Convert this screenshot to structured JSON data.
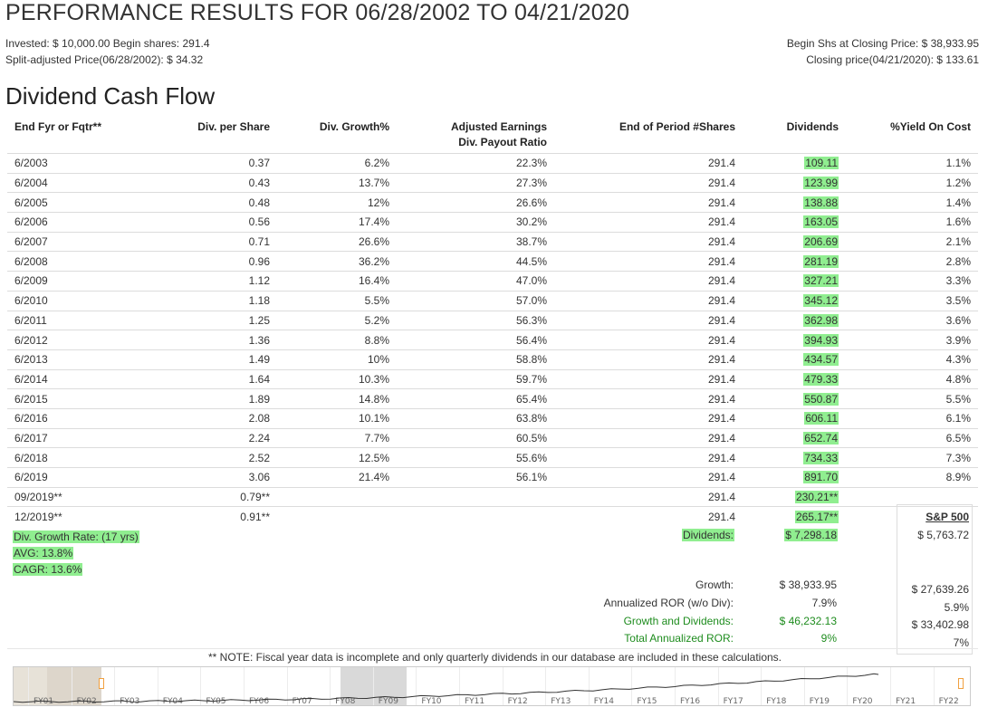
{
  "page": {
    "title": "PERFORMANCE RESULTS FOR 06/28/2002 TO 04/21/2020",
    "invested_line": "Invested: $ 10,000.00 Begin shares: 291.4",
    "split_price_line": "Split-adjusted Price(06/28/2002): $ 34.32",
    "begin_shs_line": "Begin Shs at Closing Price: $ 38,933.95",
    "closing_price_line": "Closing price(04/21/2020): $ 133.61",
    "section_title": "Dividend Cash Flow"
  },
  "table": {
    "headers": {
      "period": "End Fyr or Fqtr**",
      "div_per_share": "Div. per Share",
      "div_growth": "Div. Growth%",
      "payout_line1": "Adjusted Earnings",
      "payout_line2": "Div. Payout Ratio",
      "shares": "End of Period #Shares",
      "dividends": "Dividends",
      "yield": "%Yield On Cost"
    },
    "rows": [
      {
        "period": "6/2003",
        "dps": "0.37",
        "growth": "6.2%",
        "payout": "22.3%",
        "shares": "291.4",
        "div": "109.11",
        "yield": "1.1%"
      },
      {
        "period": "6/2004",
        "dps": "0.43",
        "growth": "13.7%",
        "payout": "27.3%",
        "shares": "291.4",
        "div": "123.99",
        "yield": "1.2%"
      },
      {
        "period": "6/2005",
        "dps": "0.48",
        "growth": "12%",
        "payout": "26.6%",
        "shares": "291.4",
        "div": "138.88",
        "yield": "1.4%"
      },
      {
        "period": "6/2006",
        "dps": "0.56",
        "growth": "17.4%",
        "payout": "30.2%",
        "shares": "291.4",
        "div": "163.05",
        "yield": "1.6%"
      },
      {
        "period": "6/2007",
        "dps": "0.71",
        "growth": "26.6%",
        "payout": "38.7%",
        "shares": "291.4",
        "div": "206.69",
        "yield": "2.1%"
      },
      {
        "period": "6/2008",
        "dps": "0.96",
        "growth": "36.2%",
        "payout": "44.5%",
        "shares": "291.4",
        "div": "281.19",
        "yield": "2.8%"
      },
      {
        "period": "6/2009",
        "dps": "1.12",
        "growth": "16.4%",
        "payout": "47.0%",
        "shares": "291.4",
        "div": "327.21",
        "yield": "3.3%"
      },
      {
        "period": "6/2010",
        "dps": "1.18",
        "growth": "5.5%",
        "payout": "57.0%",
        "shares": "291.4",
        "div": "345.12",
        "yield": "3.5%"
      },
      {
        "period": "6/2011",
        "dps": "1.25",
        "growth": "5.2%",
        "payout": "56.3%",
        "shares": "291.4",
        "div": "362.98",
        "yield": "3.6%"
      },
      {
        "period": "6/2012",
        "dps": "1.36",
        "growth": "8.8%",
        "payout": "56.4%",
        "shares": "291.4",
        "div": "394.93",
        "yield": "3.9%"
      },
      {
        "period": "6/2013",
        "dps": "1.49",
        "growth": "10%",
        "payout": "58.8%",
        "shares": "291.4",
        "div": "434.57",
        "yield": "4.3%"
      },
      {
        "period": "6/2014",
        "dps": "1.64",
        "growth": "10.3%",
        "payout": "59.7%",
        "shares": "291.4",
        "div": "479.33",
        "yield": "4.8%"
      },
      {
        "period": "6/2015",
        "dps": "1.89",
        "growth": "14.8%",
        "payout": "65.4%",
        "shares": "291.4",
        "div": "550.87",
        "yield": "5.5%"
      },
      {
        "period": "6/2016",
        "dps": "2.08",
        "growth": "10.1%",
        "payout": "63.8%",
        "shares": "291.4",
        "div": "606.11",
        "yield": "6.1%"
      },
      {
        "period": "6/2017",
        "dps": "2.24",
        "growth": "7.7%",
        "payout": "60.5%",
        "shares": "291.4",
        "div": "652.74",
        "yield": "6.5%"
      },
      {
        "period": "6/2018",
        "dps": "2.52",
        "growth": "12.5%",
        "payout": "55.6%",
        "shares": "291.4",
        "div": "734.33",
        "yield": "7.3%"
      },
      {
        "period": "6/2019",
        "dps": "3.06",
        "growth": "21.4%",
        "payout": "56.1%",
        "shares": "291.4",
        "div": "891.70",
        "yield": "8.9%"
      },
      {
        "period": "09/2019**",
        "dps": "0.79**",
        "growth": "",
        "payout": "",
        "shares": "291.4",
        "div": "230.21**",
        "yield": ""
      },
      {
        "period": "12/2019**",
        "dps": "0.91**",
        "growth": "",
        "payout": "",
        "shares": "291.4",
        "div": "265.17**",
        "yield": ""
      }
    ]
  },
  "summary": {
    "growth_rate_label": "Div. Growth Rate: (17 yrs)",
    "avg": "AVG: 13.8%",
    "cagr": "CAGR: 13.6%",
    "dividends_label": "Dividends:",
    "dividends_value": "$ 7,298.18",
    "growth_label": "Growth:",
    "growth_value": "$ 38,933.95",
    "annualized_label": "Annualized ROR (w/o Div):",
    "annualized_value": "7.9%",
    "gd_label": "Growth and Dividends:",
    "gd_value": "$ 46,232.13",
    "total_label": "Total Annualized ROR:",
    "total_value": "9%",
    "sp500": {
      "header": "S&P 500",
      "dividends": "$ 5,763.72",
      "growth": "$ 27,639.26",
      "annualized": "5.9%",
      "gd": "$ 33,402.98",
      "total": "7%"
    },
    "note": "** NOTE: Fiscal year data is incomplete and only quarterly dividends in our database are included in these calculations."
  },
  "navigator": {
    "labels": [
      "FY01",
      "FY02",
      "FY03",
      "FY04",
      "FY05",
      "FY06",
      "FY07",
      "FY08",
      "FY09",
      "FY10",
      "FY11",
      "FY12",
      "FY13",
      "FY14",
      "FY15",
      "FY16",
      "FY17",
      "FY18",
      "FY19",
      "FY20",
      "FY21",
      "FY22"
    ],
    "colors": {
      "line": "#333333",
      "handle_border": "#f0a040",
      "highlight": "#90ee90"
    }
  }
}
